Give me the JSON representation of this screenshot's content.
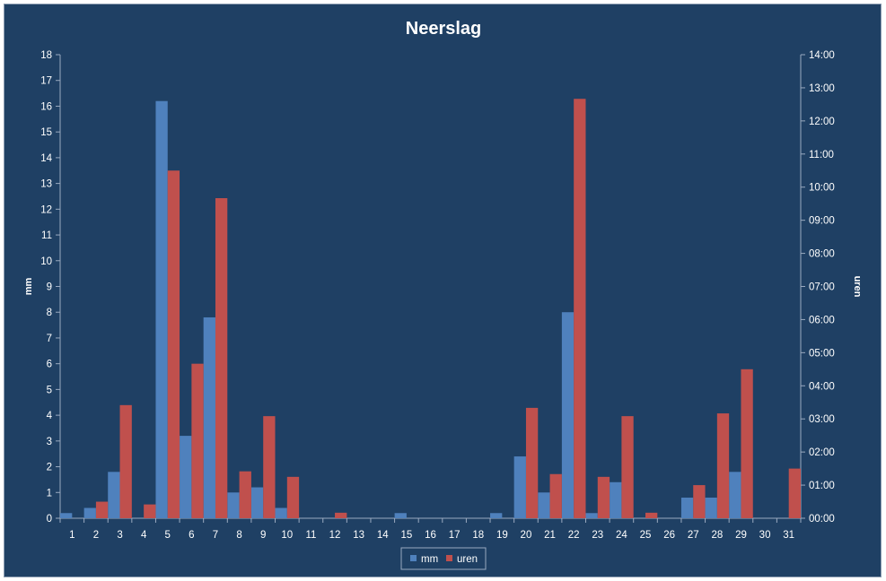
{
  "chart_data": {
    "type": "bar",
    "title": "Neerslag",
    "xlabel": "",
    "ylabel": "mm",
    "y2label": "uren",
    "categories": [
      "1",
      "2",
      "3",
      "4",
      "5",
      "6",
      "7",
      "8",
      "9",
      "10",
      "11",
      "12",
      "13",
      "14",
      "15",
      "16",
      "17",
      "18",
      "19",
      "20",
      "21",
      "22",
      "23",
      "24",
      "25",
      "26",
      "27",
      "28",
      "29",
      "30",
      "31"
    ],
    "series": [
      {
        "name": "mm",
        "axis": "left",
        "color": "#4f81bd",
        "values": [
          0.2,
          0.4,
          1.8,
          0,
          16.2,
          3.2,
          7.8,
          1.0,
          1.2,
          0.4,
          0,
          0,
          0,
          0,
          0.2,
          0,
          0,
          0,
          0.2,
          2.4,
          1.0,
          8.0,
          0.2,
          1.4,
          0,
          0,
          0.8,
          0.8,
          1.8,
          0,
          0
        ]
      },
      {
        "name": "uren",
        "axis": "right",
        "color": "#c0504d",
        "values": [
          "00:00",
          "00:30",
          "03:25",
          "00:25",
          "10:30",
          "04:40",
          "09:40",
          "01:25",
          "03:05",
          "01:15",
          "00:00",
          "00:10",
          "00:00",
          "00:00",
          "00:00",
          "00:00",
          "00:00",
          "00:00",
          "00:00",
          "03:20",
          "01:20",
          "12:40",
          "01:15",
          "03:05",
          "00:10",
          "00:00",
          "01:00",
          "03:10",
          "04:30",
          "00:00",
          "01:30"
        ]
      }
    ],
    "ylim": [
      0,
      18
    ],
    "yticks": [
      "0",
      "1",
      "2",
      "3",
      "4",
      "5",
      "6",
      "7",
      "8",
      "9",
      "10",
      "11",
      "12",
      "13",
      "14",
      "15",
      "16",
      "17",
      "18"
    ],
    "y2lim": [
      "00:00",
      "14:00"
    ],
    "y2ticks": [
      "00:00",
      "01:00",
      "02:00",
      "03:00",
      "04:00",
      "05:00",
      "06:00",
      "07:00",
      "08:00",
      "09:00",
      "10:00",
      "11:00",
      "12:00",
      "13:00",
      "14:00"
    ],
    "grid": false,
    "legend_position": "bottom",
    "colors": {
      "background": "#1f4064",
      "axis": "#9aaac0",
      "text": "#ffffff"
    }
  }
}
